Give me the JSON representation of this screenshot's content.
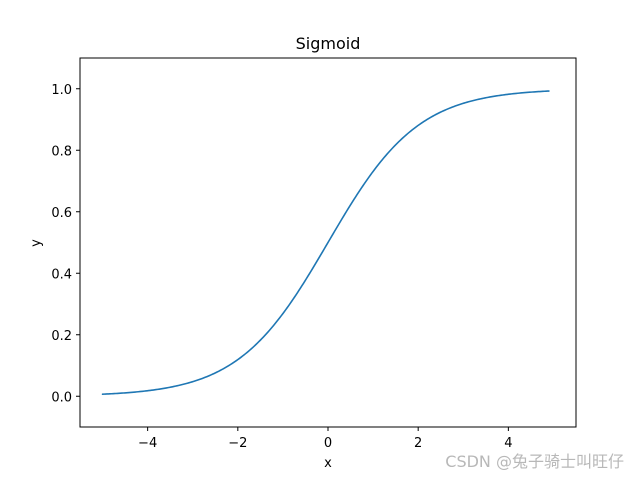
{
  "chart_data": {
    "type": "line",
    "title": "Sigmoid",
    "xlabel": "x",
    "ylabel": "y",
    "xlim": [
      -5.5,
      5.5
    ],
    "ylim": [
      -0.1,
      1.1
    ],
    "xticks": [
      -4,
      -2,
      0,
      2,
      4
    ],
    "xtick_labels": [
      "−4",
      "−2",
      "0",
      "2",
      "4"
    ],
    "yticks": [
      0.0,
      0.2,
      0.4,
      0.6,
      0.8,
      1.0
    ],
    "ytick_labels": [
      "0.0",
      "0.2",
      "0.4",
      "0.6",
      "0.8",
      "1.0"
    ],
    "grid": false,
    "series": [
      {
        "color": "#1f77b4",
        "function": "1 / (1 + exp(-x))",
        "x": [
          -5.0,
          -4.5,
          -4.0,
          -3.5,
          -3.0,
          -2.5,
          -2.0,
          -1.5,
          -1.0,
          -0.5,
          0.0,
          0.5,
          1.0,
          1.5,
          2.0,
          2.5,
          3.0,
          3.5,
          4.0,
          4.5,
          4.9
        ],
        "y": [
          0.0067,
          0.011,
          0.018,
          0.0293,
          0.0474,
          0.0759,
          0.1192,
          0.1824,
          0.2689,
          0.3775,
          0.5,
          0.6225,
          0.7311,
          0.8176,
          0.8808,
          0.9241,
          0.9526,
          0.9707,
          0.982,
          0.989,
          0.9926
        ]
      }
    ]
  },
  "watermark": "CSDN @兔子骑士叫旺仔"
}
